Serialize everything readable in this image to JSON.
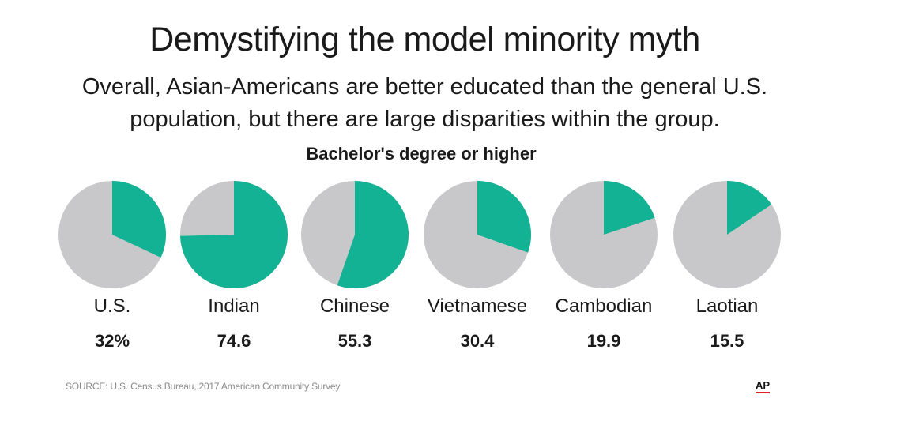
{
  "title": "Demystifying the model minority myth",
  "subtitle_line1": "Overall, Asian-Americans are better educated than the general U.S.",
  "subtitle_line2": "population, but there are large disparities within the group.",
  "source": "SOURCE: U.S. Census Bureau, 2017 American Community Survey",
  "logo": "AP",
  "colors": {
    "highlight": "#14b294",
    "remainder": "#c8c8ca"
  },
  "chart_data": {
    "type": "pie",
    "title": "Bachelor's degree or higher",
    "categories": [
      "U.S.",
      "Indian",
      "Chinese",
      "Vietnamese",
      "Cambodian",
      "Laotian"
    ],
    "values": [
      32,
      74.6,
      55.3,
      30.4,
      19.9,
      15.5
    ],
    "value_labels": [
      "32%",
      "74.6",
      "55.3",
      "30.4",
      "19.9",
      "15.5"
    ]
  }
}
